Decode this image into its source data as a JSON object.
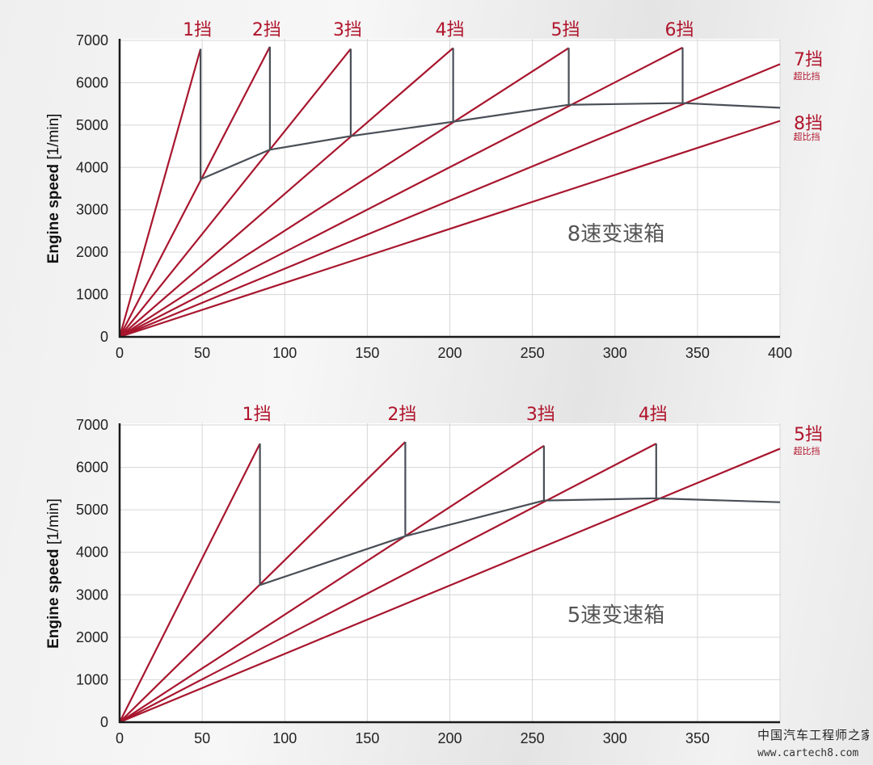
{
  "chart_data": [
    {
      "type": "line",
      "title": "8速变速箱",
      "ylabel": "Engine speed",
      "ylabel_unit": "[1/min]",
      "xlim": [
        0,
        400
      ],
      "ylim": [
        0,
        7000
      ],
      "x_ticks": [
        0,
        50,
        100,
        150,
        200,
        250,
        300,
        350,
        400
      ],
      "y_ticks": [
        0,
        1000,
        2000,
        3000,
        4000,
        5000,
        6000,
        7000
      ],
      "grid": true,
      "gears": [
        {
          "name": "1挡",
          "sub": "",
          "end": [
            49,
            6800
          ]
        },
        {
          "name": "2挡",
          "sub": "",
          "end": [
            91,
            6850
          ]
        },
        {
          "name": "3挡",
          "sub": "",
          "end": [
            140,
            6800
          ]
        },
        {
          "name": "4挡",
          "sub": "",
          "end": [
            202,
            6820
          ]
        },
        {
          "name": "5挡",
          "sub": "",
          "end": [
            272,
            6820
          ]
        },
        {
          "name": "6挡",
          "sub": "",
          "end": [
            341,
            6830
          ]
        },
        {
          "name": "7挡",
          "sub": "超比挡",
          "end": [
            400,
            6440
          ]
        },
        {
          "name": "8挡",
          "sub": "超比挡",
          "end": [
            400,
            5100
          ]
        }
      ],
      "shift_path": [
        [
          49,
          6800
        ],
        [
          49,
          3720
        ],
        [
          91,
          4420
        ],
        [
          91,
          6850
        ],
        [
          91,
          4420
        ],
        [
          140,
          4740
        ],
        [
          140,
          6800
        ],
        [
          140,
          4740
        ],
        [
          202,
          5080
        ],
        [
          202,
          6820
        ],
        [
          202,
          5080
        ],
        [
          272,
          5480
        ],
        [
          272,
          6820
        ],
        [
          272,
          5480
        ],
        [
          341,
          5520
        ],
        [
          341,
          6830
        ],
        [
          341,
          5520
        ],
        [
          400,
          5410
        ]
      ]
    },
    {
      "type": "line",
      "title": "5速变速箱",
      "ylabel": "Engine speed",
      "ylabel_unit": "[1/min]",
      "xlim": [
        0,
        400
      ],
      "ylim": [
        0,
        7000
      ],
      "x_ticks": [
        0,
        50,
        100,
        150,
        200,
        250,
        300,
        350
      ],
      "y_ticks": [
        0,
        1000,
        2000,
        3000,
        4000,
        5000,
        6000,
        7000
      ],
      "grid": true,
      "gears": [
        {
          "name": "1挡",
          "sub": "",
          "end": [
            85,
            6560
          ]
        },
        {
          "name": "2挡",
          "sub": "",
          "end": [
            173,
            6600
          ]
        },
        {
          "name": "3挡",
          "sub": "",
          "end": [
            257,
            6510
          ]
        },
        {
          "name": "4挡",
          "sub": "",
          "end": [
            325,
            6560
          ]
        },
        {
          "name": "5挡",
          "sub": "超比挡",
          "end": [
            400,
            6440
          ]
        }
      ],
      "shift_path": [
        [
          85,
          6560
        ],
        [
          85,
          3230
        ],
        [
          173,
          4380
        ],
        [
          173,
          6600
        ],
        [
          173,
          4380
        ],
        [
          257,
          5220
        ],
        [
          257,
          6510
        ],
        [
          257,
          5220
        ],
        [
          325,
          5270
        ],
        [
          325,
          6560
        ],
        [
          325,
          5270
        ],
        [
          400,
          5180
        ]
      ]
    }
  ],
  "watermark": {
    "name": "中国汽车工程师之家",
    "url": "www.cartech8.com"
  },
  "colors": {
    "gear": "#a8162e",
    "shift": "#4a4f57",
    "label": "#b0152c"
  }
}
